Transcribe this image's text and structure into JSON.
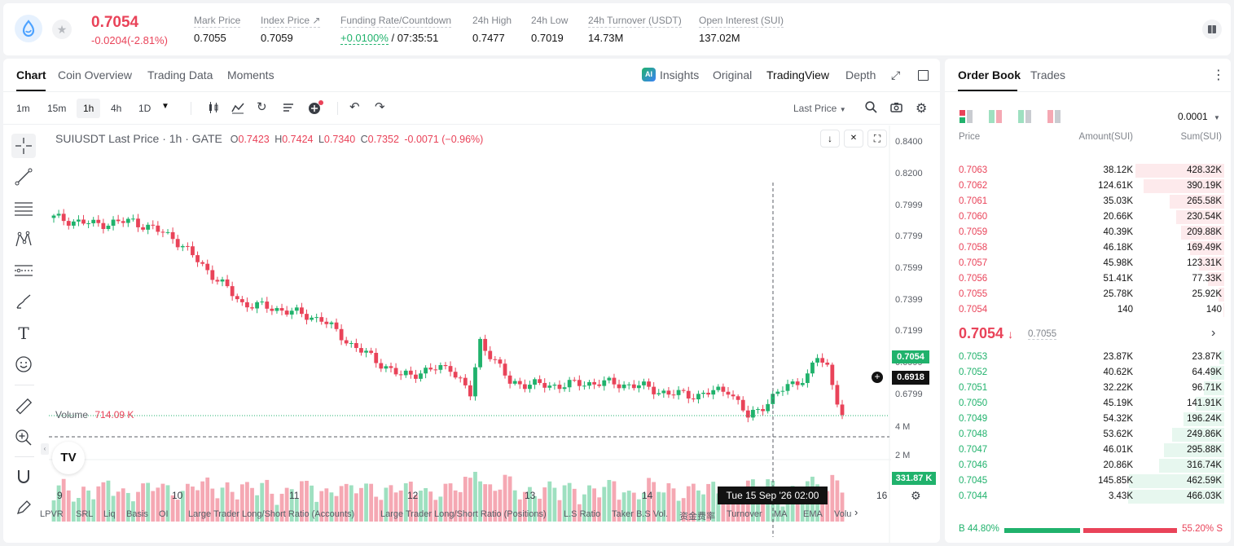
{
  "ticker": {
    "last_price": "0.7054",
    "change": "-0.0204(-2.81%)",
    "stats": [
      {
        "label": "Mark Price",
        "value": "0.7055"
      },
      {
        "label": "Index Price ↗",
        "value": "0.7059"
      },
      {
        "label": "Funding Rate/Countdown",
        "value": "+0.0100%",
        "value2": "/ 07:35:51"
      },
      {
        "label": "24h High",
        "value": "0.7477"
      },
      {
        "label": "24h Low",
        "value": "0.7019"
      },
      {
        "label": "24h Turnover (USDT)",
        "value": "14.73M"
      },
      {
        "label": "Open Interest (SUI)",
        "value": "137.02M"
      }
    ],
    "icons": {
      "coin": "sui-logo",
      "star": "star-icon",
      "book": "book-icon"
    }
  },
  "chart_tabs": [
    "Chart",
    "Coin Overview",
    "Trading Data",
    "Moments"
  ],
  "view_tabs": {
    "insights": "Insights",
    "original": "Original",
    "tradingview": "TradingView",
    "depth": "Depth"
  },
  "timeframes": [
    "1m",
    "15m",
    "1h",
    "4h",
    "1D"
  ],
  "active_timeframe": "1h",
  "last_price_dropdown": "Last Price",
  "legend": {
    "symbol": "SUIUSDT Last Price · 1h · GATE",
    "o_label": "O",
    "o": "0.7423",
    "h_label": "H",
    "h": "0.7424",
    "l_label": "L",
    "l": "0.7340",
    "c_label": "C",
    "c": "0.7352",
    "chg": "-0.0071 (−0.96%)"
  },
  "volume_legend": {
    "label": "Volume",
    "value": "714.09 K"
  },
  "price_axis": [
    "0.8400",
    "0.8200",
    "0.7999",
    "0.7799",
    "0.7599",
    "0.7399",
    "0.7199",
    "0.6999",
    "0.6799"
  ],
  "current_price_tag": "0.7054",
  "crosshair_price_tag": "0.6918",
  "volume_axis": [
    "4 M",
    "2 M"
  ],
  "volume_tag": "331.87 K",
  "time_axis": [
    "9",
    "10",
    "11",
    "12",
    "13",
    "14",
    "16"
  ],
  "crosshair_time": "Tue 15 Sep '26   02:00",
  "indicators": [
    "LPVR",
    "SRL",
    "Liq",
    "Basis",
    "OI",
    "Large Trader Long/Short Ratio (Accounts)",
    "Large Trader Long/Short Ratio (Positions)",
    "L.S Ratio",
    "Taker B.S Vol.",
    "资金费率",
    "Turnover",
    "MA",
    "EMA",
    "Volu"
  ],
  "colors": {
    "up": "#20b26c",
    "down": "#e94359",
    "up_vol": "#9ee0c0",
    "down_vol": "#f5a8b3"
  },
  "order_book": {
    "tabs": [
      "Order Book",
      "Trades"
    ],
    "precision": "0.0001",
    "headers": [
      "Price",
      "Amount(SUI)",
      "Sum(SUI)"
    ],
    "asks": [
      {
        "price": "0.7063",
        "amount": "38.12K",
        "sum": "428.32K",
        "depth": 0.92
      },
      {
        "price": "0.7062",
        "amount": "124.61K",
        "sum": "390.19K",
        "depth": 0.84
      },
      {
        "price": "0.7061",
        "amount": "35.03K",
        "sum": "265.58K",
        "depth": 0.57
      },
      {
        "price": "0.7060",
        "amount": "20.66K",
        "sum": "230.54K",
        "depth": 0.5
      },
      {
        "price": "0.7059",
        "amount": "40.39K",
        "sum": "209.88K",
        "depth": 0.45
      },
      {
        "price": "0.7058",
        "amount": "46.18K",
        "sum": "169.49K",
        "depth": 0.36
      },
      {
        "price": "0.7057",
        "amount": "45.98K",
        "sum": "123.31K",
        "depth": 0.26
      },
      {
        "price": "0.7056",
        "amount": "51.41K",
        "sum": "77.33K",
        "depth": 0.17
      },
      {
        "price": "0.7055",
        "amount": "25.78K",
        "sum": "25.92K",
        "depth": 0.06
      },
      {
        "price": "0.7054",
        "amount": "140",
        "sum": "140",
        "depth": 0.01
      }
    ],
    "mid_price": "0.7054",
    "mid_mark": "0.7055",
    "bids": [
      {
        "price": "0.7053",
        "amount": "23.87K",
        "sum": "23.87K",
        "depth": 0.05
      },
      {
        "price": "0.7052",
        "amount": "40.62K",
        "sum": "64.49K",
        "depth": 0.14
      },
      {
        "price": "0.7051",
        "amount": "32.22K",
        "sum": "96.71K",
        "depth": 0.21
      },
      {
        "price": "0.7050",
        "amount": "45.19K",
        "sum": "141.91K",
        "depth": 0.3
      },
      {
        "price": "0.7049",
        "amount": "54.32K",
        "sum": "196.24K",
        "depth": 0.42
      },
      {
        "price": "0.7048",
        "amount": "53.62K",
        "sum": "249.86K",
        "depth": 0.54
      },
      {
        "price": "0.7047",
        "amount": "46.01K",
        "sum": "295.88K",
        "depth": 0.63
      },
      {
        "price": "0.7046",
        "amount": "20.86K",
        "sum": "316.74K",
        "depth": 0.68
      },
      {
        "price": "0.7045",
        "amount": "145.85K",
        "sum": "462.59K",
        "depth": 0.99
      },
      {
        "price": "0.7044",
        "amount": "3.43K",
        "sum": "466.03K",
        "depth": 1.0
      }
    ],
    "ratio": {
      "buy_label": "B",
      "buy": "44.80%",
      "sell": "55.20%",
      "sell_label": "S",
      "buy_fraction": 0.448
    }
  }
}
